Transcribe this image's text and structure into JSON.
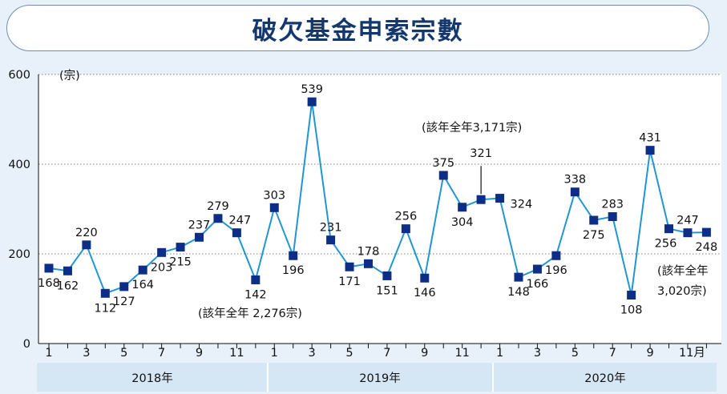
{
  "title": "破欠基金申索宗數",
  "chart_data": {
    "type": "line",
    "ylabel": "(宗)",
    "ylim": [
      0,
      600
    ],
    "yticks": [
      "0",
      "200",
      "400",
      "600"
    ],
    "grid": "horizontal dotted",
    "x_tick_labels": [
      "1",
      "3",
      "5",
      "7",
      "9",
      "11",
      "1",
      "3",
      "5",
      "7",
      "9",
      "11",
      "1",
      "3",
      "5",
      "7",
      "9",
      "11月"
    ],
    "years": [
      "2018年",
      "2019年",
      "2020年"
    ],
    "series": [
      {
        "color": "#2196d3",
        "marker_color": "#0d2e86",
        "values": [
          168,
          162,
          220,
          112,
          127,
          164,
          203,
          215,
          237,
          279,
          247,
          142,
          303,
          196,
          539,
          231,
          171,
          178,
          151,
          256,
          146,
          375,
          304,
          321,
          324,
          148,
          166,
          196,
          338,
          275,
          283,
          108,
          431,
          256,
          247,
          248
        ]
      }
    ],
    "annotations": [
      "(該年全年 2,276宗)",
      "(該年全年3,171宗)",
      "(該年全年",
      "3,020宗)"
    ]
  }
}
